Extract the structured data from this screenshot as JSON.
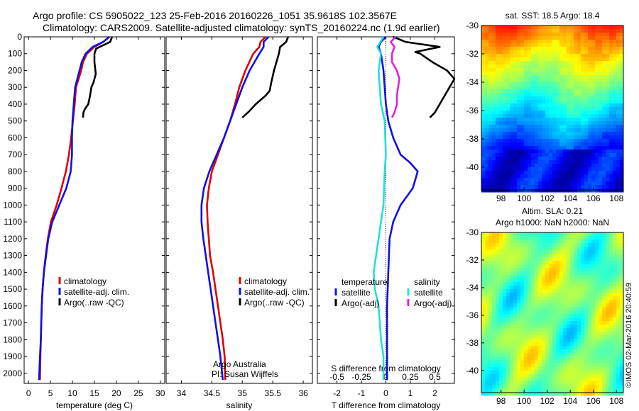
{
  "header": {
    "line1": "Argo profile: CS 5905022_123 25-Feb-2016 20160226_1051 35.9618S 102.3567E",
    "line2": "Climatology: CARS2009. Satellite-adjusted climatology: synTS_20160224.nc (1.9d earlier)"
  },
  "credit": "©IMOS 02-Mar-2016 20:40:59",
  "colors": {
    "climatology": "#e00000",
    "satellite": "#1010e0",
    "argo": "#000000",
    "sal_satellite": "#20e0e0",
    "sal_argo": "#e020e0"
  },
  "chart_data": [
    {
      "type": "line",
      "xlabel": "temperature (deg C)",
      "xlim": [
        -1,
        31
      ],
      "ylim": [
        2060,
        0
      ],
      "xticks": [
        "0",
        "5",
        "10",
        "15",
        "20",
        "25",
        "30"
      ],
      "xtick_values": [
        0,
        5,
        10,
        15,
        20,
        25,
        30
      ],
      "yticks": [
        "0",
        "100",
        "200",
        "300",
        "400",
        "500",
        "600",
        "700",
        "800",
        "900",
        "1000",
        "1100",
        "1200",
        "1300",
        "1400",
        "1500",
        "1600",
        "1700",
        "1800",
        "1900",
        "2000"
      ],
      "legend": [
        "climatology",
        "satellite-adj. clim.",
        "Argo(..raw -QC)"
      ],
      "series": [
        {
          "name": "climatology",
          "color": "red",
          "x": [
            18.4,
            17,
            15,
            13.3,
            12.4,
            12.0,
            11.4,
            10.8,
            10.5,
            10.1,
            9.7,
            9.2,
            8.5,
            7.5,
            6.4,
            5.1,
            4.4,
            3.9,
            3.5,
            3.2,
            3.0,
            2.8,
            2.7,
            2.6
          ],
          "y": [
            0,
            30,
            60,
            100,
            150,
            200,
            250,
            300,
            400,
            500,
            600,
            700,
            800,
            900,
            1000,
            1100,
            1200,
            1300,
            1400,
            1500,
            1600,
            1800,
            1900,
            2040
          ]
        },
        {
          "name": "satellite-adj. clim.",
          "color": "blue",
          "x": [
            18.4,
            17,
            14.6,
            13.0,
            12.1,
            11.6,
            11.1,
            10.6,
            10.3,
            10.0,
            9.9,
            9.9,
            9.6,
            8.6,
            7.0,
            5.4,
            4.5,
            4.0,
            3.5,
            3.2,
            3.0,
            2.8,
            2.6,
            2.4
          ],
          "y": [
            0,
            30,
            60,
            100,
            150,
            200,
            250,
            300,
            400,
            500,
            600,
            700,
            800,
            900,
            1000,
            1100,
            1200,
            1300,
            1400,
            1500,
            1600,
            1800,
            1900,
            2040
          ]
        },
        {
          "name": "Argo(..raw -QC)",
          "color": "black",
          "x": [
            19.0,
            18.6,
            15.4,
            15.0,
            15.0,
            15.3,
            14.8,
            14.3,
            14.0,
            13.6,
            12.8,
            12.5,
            12.4
          ],
          "y": [
            0,
            30,
            70,
            100,
            150,
            220,
            270,
            300,
            350,
            400,
            430,
            450,
            480
          ]
        }
      ],
      "annotations": []
    },
    {
      "type": "line",
      "xlabel": "salinity",
      "xlim": [
        33.75,
        36.15
      ],
      "ylim": [
        2060,
        0
      ],
      "xticks": [
        "34",
        "34.5",
        "35",
        "35.5",
        "36"
      ],
      "xtick_values": [
        34,
        34.5,
        35,
        35.5,
        36
      ],
      "legend": [
        "climatology",
        "satellite-adj. clim.",
        "Argo(..raw -QC)"
      ],
      "series": [
        {
          "name": "climatology",
          "color": "red",
          "x": [
            35.38,
            35.3,
            35.28,
            35.18,
            35.05,
            34.95,
            34.88,
            34.8,
            34.7,
            34.6,
            34.5,
            34.45,
            34.42,
            34.43,
            34.45,
            34.47,
            34.52,
            34.56,
            34.6,
            34.64,
            34.68,
            34.71,
            34.72
          ],
          "y": [
            0,
            30,
            60,
            100,
            200,
            300,
            400,
            500,
            600,
            700,
            800,
            900,
            1000,
            1100,
            1200,
            1300,
            1400,
            1500,
            1600,
            1700,
            1800,
            1900,
            2040
          ]
        },
        {
          "name": "satellite-adj. clim.",
          "color": "blue",
          "x": [
            35.43,
            35.35,
            35.35,
            35.28,
            35.12,
            35.0,
            34.9,
            34.8,
            34.7,
            34.58,
            34.46,
            34.37,
            34.33,
            34.33,
            34.36,
            34.4,
            34.44,
            34.48,
            34.52,
            34.56,
            34.6,
            34.64,
            34.68
          ],
          "y": [
            0,
            30,
            60,
            100,
            200,
            300,
            400,
            500,
            600,
            700,
            800,
            900,
            1000,
            1100,
            1200,
            1300,
            1400,
            1500,
            1600,
            1700,
            1800,
            1900,
            2040
          ]
        },
        {
          "name": "Argo(..raw -QC)",
          "color": "black",
          "x": [
            35.75,
            35.72,
            35.62,
            35.6,
            35.52,
            35.47,
            35.45,
            35.38,
            35.22,
            35.12,
            35.0
          ],
          "y": [
            0,
            30,
            60,
            100,
            200,
            280,
            320,
            350,
            400,
            440,
            480
          ]
        }
      ],
      "annotations": [
        "Argo Australia",
        "PI: Susan Wijffels"
      ]
    },
    {
      "type": "line",
      "xlabel": "T difference from climatology",
      "xlabel_top": "S difference from climatology",
      "xlim": [
        -2.8,
        2.8
      ],
      "ylim": [
        2060,
        0
      ],
      "xticks": [
        "-2",
        "-1",
        "0",
        "1",
        "2"
      ],
      "xtick_values": [
        -2,
        -1,
        0,
        1,
        2
      ],
      "top_ticks": [
        "-0.5",
        "-0.25",
        "0",
        "0.25",
        "0.5"
      ],
      "top_tick_values": [
        -0.5,
        -0.25,
        0,
        0.25,
        0.5
      ],
      "legend_titles": [
        "temperature",
        "salinity"
      ],
      "legend": [
        "satellite",
        "Argo(-adj)",
        "satellite",
        "Argo(-adj)"
      ],
      "series": [
        {
          "name": "temperature satellite",
          "color": "blue",
          "x": [
            0,
            -0.2,
            -0.3,
            -0.2,
            -0.1,
            0,
            0.1,
            0.3,
            0.6,
            1.0,
            1.3,
            1.1,
            0.6,
            0.3,
            0.15,
            0.1,
            0.05,
            0.05,
            0.05
          ],
          "y": [
            0,
            30,
            60,
            100,
            200,
            400,
            500,
            600,
            700,
            750,
            800,
            900,
            1000,
            1100,
            1200,
            1400,
            1600,
            1800,
            2040
          ]
        },
        {
          "name": "temperature Argo(-adj)",
          "color": "black",
          "x": [
            0.3,
            0.8,
            2.2,
            1.2,
            1.4,
            1.9,
            2.5,
            2.8,
            2.6,
            2.4,
            2.2,
            2.0,
            1.8
          ],
          "y": [
            0,
            30,
            60,
            90,
            100,
            150,
            200,
            250,
            300,
            350,
            400,
            450,
            480
          ]
        },
        {
          "name": "salinity satellite",
          "color": "cyan",
          "x": [
            -0.1,
            -0.35,
            -0.2,
            -0.3,
            -0.2,
            -0.05,
            0,
            -0.05,
            -0.1,
            -0.2,
            -0.3,
            -0.4,
            -0.5,
            -0.45,
            -0.3,
            -0.2,
            -0.1,
            -0.1
          ],
          "y": [
            0,
            60,
            100,
            200,
            400,
            500,
            700,
            800,
            1000,
            1100,
            1200,
            1300,
            1400,
            1500,
            1600,
            1800,
            1900,
            2040
          ]
        },
        {
          "name": "salinity Argo(-adj)",
          "color": "magenta",
          "x": [
            0.4,
            0.2,
            0.35,
            0.25,
            0.25,
            0.45,
            0.55,
            0.5,
            0.45,
            0.45,
            0.35,
            0.25
          ],
          "y": [
            0,
            30,
            60,
            100,
            150,
            200,
            250,
            300,
            350,
            400,
            450,
            480
          ]
        }
      ],
      "annotations": []
    },
    {
      "type": "heatmap",
      "title": "sat. SST: 18.5 Argo: 18.4",
      "xticks": [
        "98",
        "100",
        "102",
        "104",
        "106",
        "108"
      ],
      "yticks": [
        "-30",
        "-32",
        "-34",
        "-36",
        "-38",
        "-40"
      ],
      "colormap": "jet"
    },
    {
      "type": "heatmap",
      "title_lines": [
        "Altim. SLA: 0.21",
        "Argo h1000: NaN h2000: NaN"
      ],
      "xticks": [
        "98",
        "100",
        "102",
        "104",
        "106",
        "108"
      ],
      "yticks": [
        "-30",
        "-32",
        "-34",
        "-36",
        "-38",
        "-40"
      ],
      "colormap": "jet"
    }
  ]
}
